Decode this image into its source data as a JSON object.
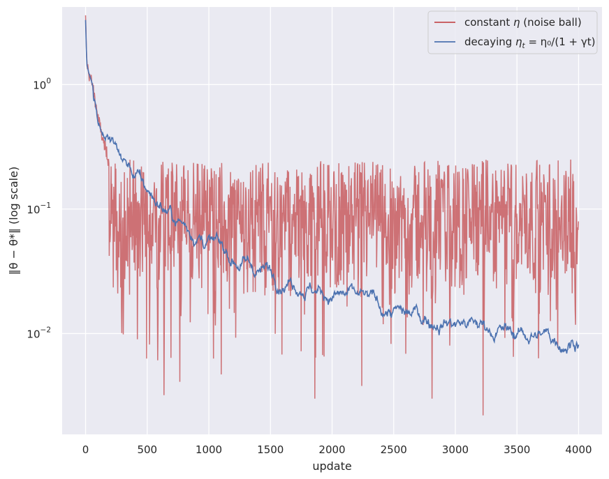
{
  "chart_data": {
    "type": "line",
    "title": "",
    "xlabel": "update",
    "ylabel": "‖θ − θ*‖  (log scale)",
    "xlim": [
      -190,
      4190
    ],
    "ylim": [
      0.00155,
      4.2
    ],
    "yscale": "log",
    "grid": true,
    "legend_position": "top-right",
    "x_ticks": [
      0,
      500,
      1000,
      1500,
      2000,
      2500,
      3000,
      3500,
      4000
    ],
    "x_tick_labels": [
      "0",
      "500",
      "1000",
      "1500",
      "2000",
      "2500",
      "3000",
      "3500",
      "4000"
    ],
    "y_ticks": [
      {
        "value": 1,
        "base": "10",
        "exp": "0"
      },
      {
        "value": 0.1,
        "base": "10",
        "exp": "−1"
      },
      {
        "value": 0.01,
        "base": "10",
        "exp": "−2"
      }
    ],
    "colors": {
      "background": "#eaeaf2",
      "grid": "#ffffff",
      "constant": "#c44e52",
      "decaying": "#4c72b0"
    },
    "series": [
      {
        "name": "constant η (noise ball)",
        "color": "#c44e52",
        "x": [
          0,
          10,
          25,
          50,
          75,
          100,
          130,
          160,
          190,
          200,
          300,
          400,
          500,
          600,
          700,
          800,
          900,
          1000,
          1100,
          1200,
          1300,
          1400,
          1500,
          1600,
          1700,
          1800,
          1900,
          2000,
          2100,
          2200,
          2300,
          2400,
          2500,
          2600,
          2700,
          2800,
          2900,
          3000,
          3100,
          3200,
          3300,
          3400,
          3500,
          3600,
          3700,
          3800,
          3900,
          4000
        ],
        "y": [
          3.3,
          1.5,
          1.25,
          1.05,
          0.78,
          0.55,
          0.4,
          0.3,
          0.24,
          0.1,
          0.1,
          0.1,
          0.1,
          0.1,
          0.1,
          0.1,
          0.1,
          0.1,
          0.1,
          0.1,
          0.1,
          0.1,
          0.1,
          0.1,
          0.1,
          0.1,
          0.1,
          0.1,
          0.1,
          0.1,
          0.1,
          0.1,
          0.1,
          0.1,
          0.1,
          0.1,
          0.1,
          0.1,
          0.1,
          0.1,
          0.1,
          0.1,
          0.1,
          0.1,
          0.1,
          0.1,
          0.1,
          0.1
        ],
        "typical_band": [
          0.02,
          0.25
        ],
        "noise_floor_points": [
          {
            "x": 290,
            "y": 0.017
          },
          {
            "x": 420,
            "y": 0.009
          },
          {
            "x": 495,
            "y": 0.0063
          },
          {
            "x": 635,
            "y": 0.0032
          },
          {
            "x": 765,
            "y": 0.0041
          },
          {
            "x": 1100,
            "y": 0.0047
          },
          {
            "x": 1540,
            "y": 0.0064
          },
          {
            "x": 1860,
            "y": 0.003
          },
          {
            "x": 2240,
            "y": 0.0038
          },
          {
            "x": 2810,
            "y": 0.003
          },
          {
            "x": 3225,
            "y": 0.0022
          },
          {
            "x": 3470,
            "y": 0.0065
          }
        ]
      },
      {
        "name": "decaying η_t = η_0/(1 + γt)",
        "color": "#4c72b0",
        "x": [
          0,
          10,
          25,
          50,
          75,
          100,
          130,
          160,
          200,
          250,
          300,
          400,
          500,
          600,
          700,
          800,
          900,
          1000,
          1100,
          1200,
          1300,
          1400,
          1500,
          1600,
          1700,
          1800,
          1900,
          2000,
          2100,
          2200,
          2300,
          2400,
          2500,
          2600,
          2700,
          2800,
          2900,
          3000,
          3100,
          3200,
          3300,
          3400,
          3500,
          3600,
          3700,
          3800,
          3900,
          4000
        ],
        "y": [
          3.3,
          1.45,
          1.25,
          1.05,
          0.82,
          0.6,
          0.47,
          0.42,
          0.36,
          0.3,
          0.25,
          0.19,
          0.14,
          0.11,
          0.088,
          0.075,
          0.065,
          0.055,
          0.047,
          0.04,
          0.036,
          0.033,
          0.031,
          0.029,
          0.027,
          0.025,
          0.022,
          0.021,
          0.02,
          0.019,
          0.018,
          0.016,
          0.015,
          0.014,
          0.014,
          0.013,
          0.0128,
          0.0125,
          0.012,
          0.0115,
          0.011,
          0.0105,
          0.01,
          0.0098,
          0.0095,
          0.0092,
          0.0088,
          0.0095
        ]
      }
    ],
    "legend": {
      "entries": [
        {
          "prefix": "constant ",
          "var": "η",
          "sub": "",
          "suffix": " (noise ball)",
          "color": "#c44e52"
        },
        {
          "prefix": "decaying ",
          "var": "η",
          "sub": "t",
          "suffix": " = η₀/(1 + γt)",
          "color": "#4c72b0"
        }
      ]
    }
  }
}
